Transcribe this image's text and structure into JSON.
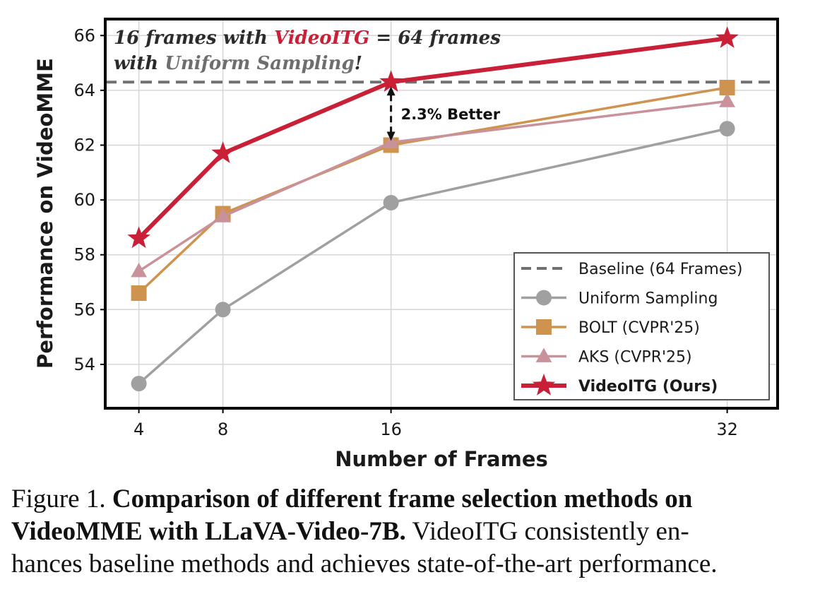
{
  "chart_data": {
    "type": "line",
    "xlabel": "Number of Frames",
    "ylabel": "Performance on VideoMME",
    "x": [
      4,
      8,
      16,
      32
    ],
    "xticks": [
      "4",
      "8",
      "16",
      "32"
    ],
    "yticks": [
      "54",
      "56",
      "58",
      "60",
      "62",
      "64",
      "66"
    ],
    "ylim": [
      52.4,
      66.6
    ],
    "grid": true,
    "legend_position": "bottom-right",
    "baseline": {
      "name": "Baseline (64 Frames)",
      "value": 64.3,
      "color": "#707070"
    },
    "series": [
      {
        "name": "Uniform Sampling",
        "values": [
          53.3,
          56.0,
          59.9,
          62.6
        ],
        "color": "#a0a0a0",
        "marker": "circle"
      },
      {
        "name": "BOLT (CVPR'25)",
        "values": [
          56.6,
          59.5,
          62.0,
          64.1
        ],
        "color": "#cf9350",
        "marker": "square"
      },
      {
        "name": "AKS (CVPR'25)",
        "values": [
          57.4,
          59.4,
          62.1,
          63.6
        ],
        "color": "#c9929a",
        "marker": "triangle"
      },
      {
        "name": "VideoITG (Ours)",
        "values": [
          58.6,
          61.7,
          64.3,
          65.9
        ],
        "color": "#c91f37",
        "marker": "star"
      }
    ],
    "annotation": {
      "line1_part1": "16 frames",
      "line1_part2": " with ",
      "line1_part3": "VideoITG",
      "line1_part4": " = 64 frames",
      "line2_part1": "with ",
      "line2_part2": "Uniform Sampling",
      "line2_part3": "!",
      "gap_label": "2.3% Better",
      "gap_x": 16,
      "gap_from": 64.3,
      "gap_to": 62.0
    }
  },
  "caption": {
    "prefix": "Figure 1. ",
    "bold_line1": "Comparison of different frame selection methods on",
    "bold_line2": "VideoMME with LLaVA-Video-7B.",
    "rest_line2": " VideoITG consistently en-",
    "line3": "hances baseline methods and achieves state-of-the-art performance."
  }
}
